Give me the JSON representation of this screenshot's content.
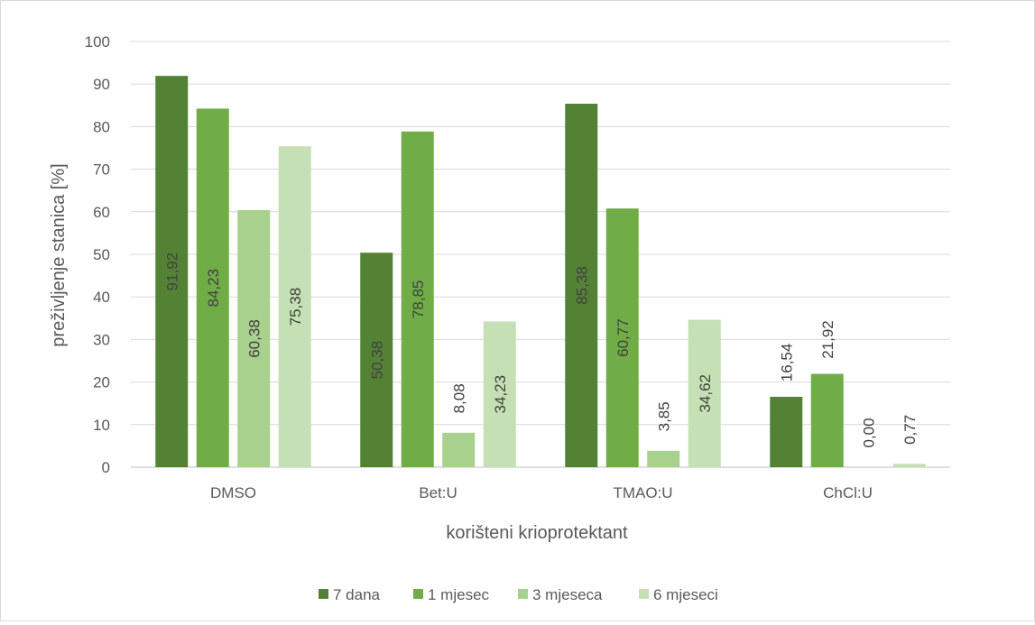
{
  "chart_data": {
    "type": "bar",
    "title": "",
    "xlabel": "korišteni krioprotektant",
    "ylabel": "preživljenje stanica [%]",
    "ylim": [
      0,
      100
    ],
    "yticks": [
      "0",
      "10",
      "20",
      "30",
      "40",
      "50",
      "60",
      "70",
      "80",
      "90",
      "100"
    ],
    "categories": [
      "DMSO",
      "Bet:U",
      "TMAO:U",
      "ChCl:U"
    ],
    "grid": true,
    "legend_position": "bottom",
    "series": [
      {
        "name": "7 dana",
        "color": "#548235",
        "values": [
          91.92,
          50.38,
          85.38,
          16.54
        ],
        "labels": [
          "91,92",
          "50,38",
          "85,38",
          "16,54"
        ]
      },
      {
        "name": "1 mjesec",
        "color": "#70ad47",
        "values": [
          84.23,
          78.85,
          60.77,
          21.92
        ],
        "labels": [
          "84,23",
          "78,85",
          "60,77",
          "21,92"
        ]
      },
      {
        "name": "3 mjeseca",
        "color": "#a9d18e",
        "values": [
          60.38,
          8.08,
          3.85,
          0.0
        ],
        "labels": [
          "60,38",
          "8,08",
          "3,85",
          "0,00"
        ]
      },
      {
        "name": "6 mjeseci",
        "color": "#c5e0b4",
        "values": [
          75.38,
          34.23,
          34.62,
          0.77
        ],
        "labels": [
          "75,38",
          "34,23",
          "34,62",
          "0,77"
        ]
      }
    ]
  }
}
